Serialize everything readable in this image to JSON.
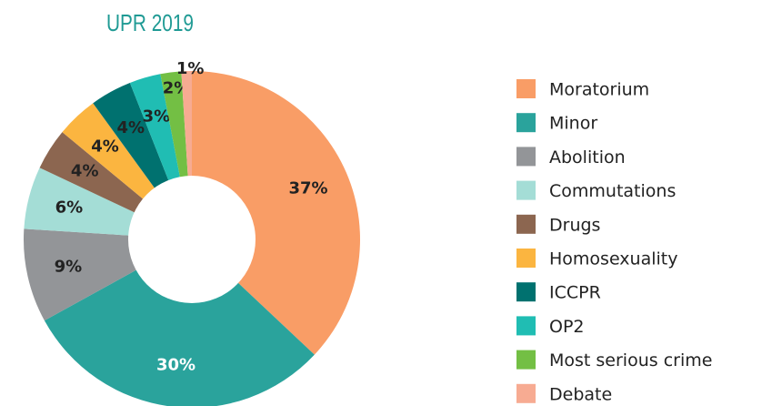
{
  "chart_data": {
    "type": "pie",
    "title": "UPR 2019",
    "categories": [
      "Moratorium",
      "Minor",
      "Abolition",
      "Commutations",
      "Drugs",
      "Homosexuality",
      "ICCPR",
      "OP2",
      "Most serious crime",
      "Debate"
    ],
    "values": [
      37,
      30,
      9,
      6,
      4,
      4,
      4,
      3,
      2,
      1
    ],
    "value_labels": [
      "37%",
      "30%",
      "9%",
      "6%",
      "4%",
      "4%",
      "4%",
      "3%",
      "2%",
      "1%"
    ],
    "colors": [
      "#f99d66",
      "#2aa39c",
      "#939598",
      "#a4ddd6",
      "#8c6650",
      "#fbb540",
      "#00716f",
      "#20bdb3",
      "#73bf44",
      "#f7ab92"
    ],
    "legend": "right"
  }
}
